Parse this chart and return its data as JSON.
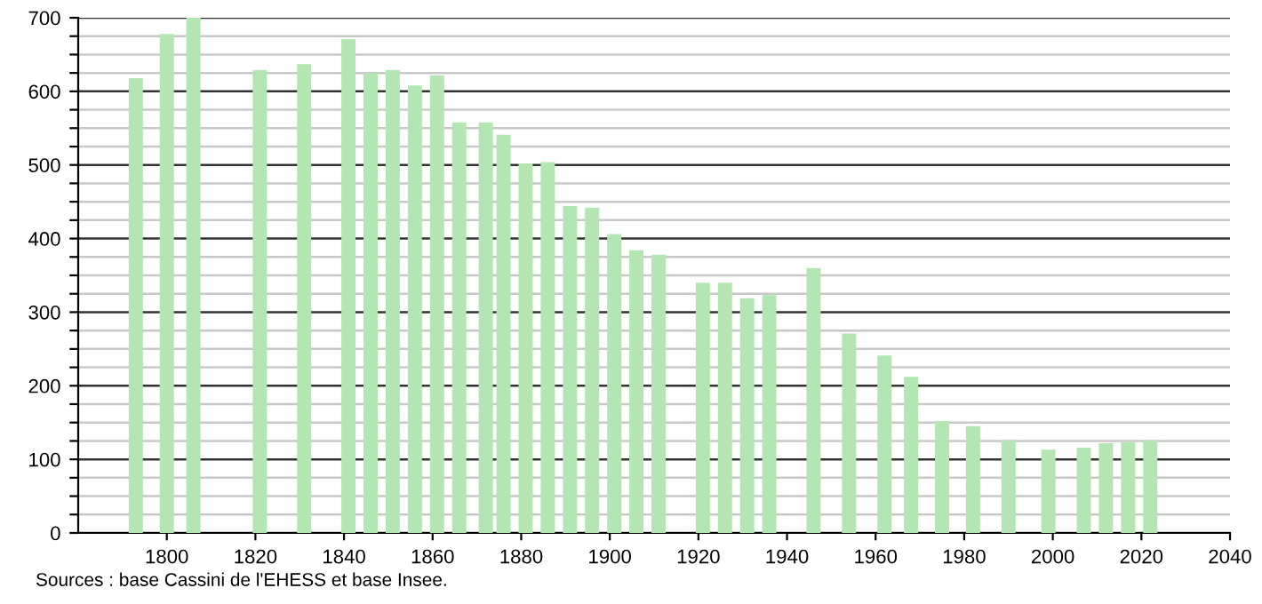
{
  "chart_data": {
    "type": "bar",
    "x": [
      1793,
      1800,
      1806,
      1821,
      1831,
      1841,
      1846,
      1851,
      1856,
      1861,
      1866,
      1872,
      1876,
      1881,
      1886,
      1891,
      1896,
      1901,
      1906,
      1911,
      1921,
      1926,
      1931,
      1936,
      1946,
      1954,
      1962,
      1968,
      1975,
      1982,
      1990,
      1999,
      2007,
      2012,
      2017,
      2022
    ],
    "values": [
      618,
      678,
      700,
      629,
      637,
      671,
      625,
      629,
      608,
      622,
      558,
      558,
      541,
      502,
      504,
      444,
      442,
      406,
      384,
      378,
      340,
      340,
      319,
      323,
      360,
      271,
      241,
      212,
      152,
      145,
      126,
      113,
      116,
      122,
      123,
      126
    ],
    "color": "#b3e6b3",
    "xlim": [
      1780,
      2040
    ],
    "xticks": [
      1800,
      1820,
      1840,
      1860,
      1880,
      1900,
      1920,
      1940,
      1960,
      1980,
      2000,
      2020,
      2040
    ],
    "ylim": [
      0,
      700
    ],
    "yticks": [
      0,
      {
        "value": 25,
        "label": null
      },
      {
        "value": 50,
        "label": null
      },
      {
        "value": 75,
        "label": null
      },
      100,
      {
        "value": 125,
        "label": null
      },
      {
        "value": 150,
        "label": null
      },
      {
        "value": 175,
        "label": null
      },
      200,
      {
        "value": 225,
        "label": null
      },
      {
        "value": 250,
        "label": null
      },
      {
        "value": 275,
        "label": null
      },
      300,
      {
        "value": 325,
        "label": null
      },
      {
        "value": 350,
        "label": null
      },
      {
        "value": 375,
        "label": null
      },
      400,
      {
        "value": 425,
        "label": null
      },
      {
        "value": 450,
        "label": null
      },
      {
        "value": 475,
        "label": null
      },
      500,
      {
        "value": 525,
        "label": null
      },
      {
        "value": 550,
        "label": null
      },
      {
        "value": 575,
        "label": null
      },
      600,
      {
        "value": 625,
        "label": null
      },
      {
        "value": 650,
        "label": null
      },
      {
        "value": 675,
        "label": null
      },
      700
    ],
    "grid": "y",
    "annotations": [
      "Sources : base Cassini de l'EHESS et base Insee."
    ]
  }
}
